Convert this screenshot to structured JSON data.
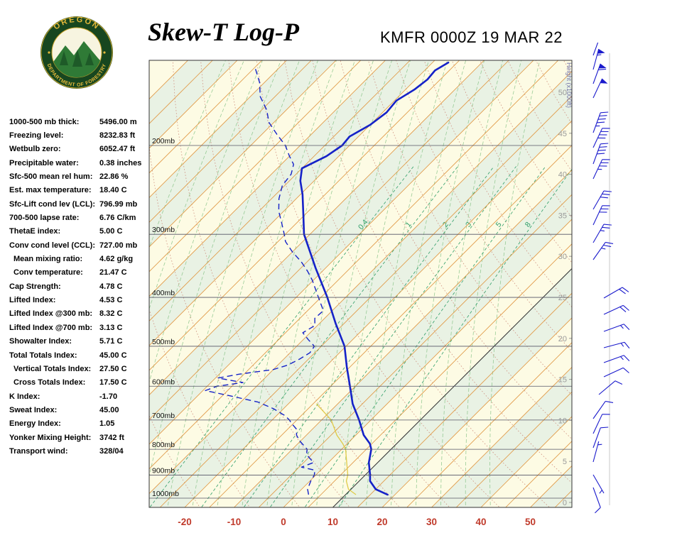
{
  "header": {
    "title": "Skew-T Log-P",
    "station_line": "KMFR 0000Z 19 MAR 22",
    "logo": {
      "top_text": "OREGON",
      "bottom_text": "DEPARTMENT OF FORESTRY"
    }
  },
  "stats": {
    "rows": [
      {
        "label": "1000-500 mb thick:",
        "value": "5496.00 m",
        "indent": false
      },
      {
        "label": "Freezing level:",
        "value": "8232.83 ft",
        "indent": false
      },
      {
        "label": "Wetbulb zero:",
        "value": "6052.47 ft",
        "indent": false
      },
      {
        "label": "Precipitable water:",
        "value": "0.38 inches",
        "indent": false
      },
      {
        "label": "Sfc-500 mean rel hum:",
        "value": "22.86 %",
        "indent": false
      },
      {
        "label": "Est. max temperature:",
        "value": "18.40 C",
        "indent": false
      },
      {
        "label": "Sfc-Lift cond lev (LCL):",
        "value": "796.99 mb",
        "indent": false
      },
      {
        "label": "700-500 lapse rate:",
        "value": "6.76 C/km",
        "indent": false
      },
      {
        "label": "ThetaE index:",
        "value": "5.00 C",
        "indent": false
      },
      {
        "label": "Conv cond level (CCL):",
        "value": "727.00 mb",
        "indent": false
      },
      {
        "label": "Mean mixing ratio:",
        "value": "4.62 g/kg",
        "indent": true
      },
      {
        "label": "Conv temperature:",
        "value": "21.47 C",
        "indent": true
      },
      {
        "label": "Cap Strength:",
        "value": "4.78 C",
        "indent": false
      },
      {
        "label": "Lifted Index:",
        "value": "4.53 C",
        "indent": false
      },
      {
        "label": "Lifted Index @300 mb:",
        "value": "8.32 C",
        "indent": false
      },
      {
        "label": "Lifted Index @700 mb:",
        "value": "3.13 C",
        "indent": false
      },
      {
        "label": "Showalter Index:",
        "value": "5.71 C",
        "indent": false
      },
      {
        "label": "Total Totals Index:",
        "value": "45.00 C",
        "indent": false
      },
      {
        "label": "Vertical Totals Index:",
        "value": "27.50 C",
        "indent": true
      },
      {
        "label": "Cross Totals Index:",
        "value": "17.50 C",
        "indent": true
      },
      {
        "label": "K Index:",
        "value": "-1.70",
        "indent": false
      },
      {
        "label": "Sweat Index:",
        "value": "45.00",
        "indent": false
      },
      {
        "label": "Energy Index:",
        "value": "1.05",
        "indent": false
      },
      {
        "label": "Yonker Mixing Height:",
        "value": "3742 ft",
        "indent": false
      },
      {
        "label": "Transport wind:",
        "value": "328/04",
        "indent": false
      }
    ]
  },
  "chart_data": {
    "type": "line",
    "title": "Skew-T Log-P",
    "x_axis": {
      "ticks": [
        -20,
        -10,
        0,
        10,
        20,
        30,
        40,
        50
      ],
      "unit": "C"
    },
    "pressure_levels": [
      200,
      300,
      400,
      500,
      600,
      700,
      800,
      900,
      1000
    ],
    "pressure_unit": "mb",
    "height_scale": {
      "label": "Height (x1000ft)",
      "ticks": [
        50,
        45,
        40,
        35,
        30,
        25,
        20,
        15,
        10,
        5,
        0
      ]
    },
    "mixing_ratio_labels": [
      0.4,
      1,
      2,
      3,
      5,
      8
    ],
    "highlight_isotherm": 10,
    "colors": {
      "temperature": "#1522C8",
      "dewpoint": "#1522C8",
      "isotherm": "#E09946",
      "isotherm_highlight": "#3A3A3A",
      "dry_adiabat": "#CC8878",
      "moist_adiabat": "#8AC48A",
      "mixing_ratio": "#2E9E68",
      "pressure_line": "#555566",
      "band_a": "#FDFBE4",
      "band_b": "#E9F2E4",
      "temp_axis": "#C03A2B",
      "height_scale": "#999999",
      "wind_barb": "#1A1ACC",
      "wetbulb": "#DFCB4A"
    },
    "series": [
      {
        "name": "temperature",
        "points": [
          [
            984,
            18.5
          ],
          [
            960,
            15.0
          ],
          [
            925,
            12.2
          ],
          [
            900,
            11.0
          ],
          [
            850,
            8.2
          ],
          [
            800,
            6.0
          ],
          [
            780,
            4.6
          ],
          [
            750,
            1.6
          ],
          [
            700,
            -2.4
          ],
          [
            650,
            -7.0
          ],
          [
            600,
            -11.1
          ],
          [
            550,
            -15.6
          ],
          [
            500,
            -20.3
          ],
          [
            450,
            -26.8
          ],
          [
            400,
            -33.7
          ],
          [
            350,
            -42.0
          ],
          [
            300,
            -51.2
          ],
          [
            275,
            -55.2
          ],
          [
            250,
            -59.6
          ],
          [
            235,
            -62.8
          ],
          [
            222,
            -65.0
          ],
          [
            210,
            -62.5
          ],
          [
            200,
            -61.5
          ],
          [
            192,
            -61.8
          ],
          [
            182,
            -60.0
          ],
          [
            172,
            -59.2
          ],
          [
            163,
            -59.6
          ],
          [
            155,
            -58.2
          ],
          [
            148,
            -57.6
          ],
          [
            142,
            -57.9
          ],
          [
            137,
            -56.8
          ]
        ]
      },
      {
        "name": "dewpoint",
        "points": [
          [
            984,
            2.5
          ],
          [
            960,
            1.2
          ],
          [
            925,
            0.2
          ],
          [
            900,
            -0.3
          ],
          [
            880,
            -1.2
          ],
          [
            868,
            -4.5
          ],
          [
            850,
            -3.0
          ],
          [
            820,
            -6.0
          ],
          [
            800,
            -7.0
          ],
          [
            770,
            -10.2
          ],
          [
            750,
            -12.0
          ],
          [
            730,
            -13.2
          ],
          [
            710,
            -15.5
          ],
          [
            700,
            -16.5
          ],
          [
            685,
            -18.5
          ],
          [
            665,
            -22.0
          ],
          [
            645,
            -26.5
          ],
          [
            628,
            -33.0
          ],
          [
            612,
            -39.5
          ],
          [
            600,
            -38.0
          ],
          [
            590,
            -33.5
          ],
          [
            578,
            -39.5
          ],
          [
            568,
            -36.0
          ],
          [
            556,
            -30.0
          ],
          [
            545,
            -28.0
          ],
          [
            530,
            -26.8
          ],
          [
            515,
            -26.0
          ],
          [
            500,
            -26.4
          ],
          [
            485,
            -29.0
          ],
          [
            470,
            -31.5
          ],
          [
            455,
            -30.5
          ],
          [
            440,
            -32.0
          ],
          [
            425,
            -31.8
          ],
          [
            410,
            -34.0
          ],
          [
            400,
            -35.5
          ],
          [
            385,
            -37.8
          ],
          [
            370,
            -40.2
          ],
          [
            355,
            -43.0
          ],
          [
            340,
            -46.2
          ],
          [
            325,
            -50.0
          ],
          [
            310,
            -53.5
          ],
          [
            300,
            -55.2
          ],
          [
            285,
            -58.0
          ],
          [
            270,
            -61.0
          ],
          [
            255,
            -63.5
          ],
          [
            240,
            -65.5
          ],
          [
            228,
            -66.0
          ],
          [
            218,
            -67.5
          ],
          [
            210,
            -70.0
          ],
          [
            200,
            -73.0
          ],
          [
            190,
            -77.0
          ],
          [
            180,
            -81.0
          ],
          [
            170,
            -84.0
          ],
          [
            160,
            -88.0
          ],
          [
            150,
            -91.0
          ],
          [
            140,
            -95.0
          ]
        ]
      }
    ],
    "wetbulb": {
      "factor": 0.6,
      "top_p": 620
    },
    "wind_barbs": {
      "barbs": [
        [
          78,
          20,
          55,
          30
        ],
        [
          98,
          15,
          55,
          30
        ],
        [
          118,
          20,
          60,
          30
        ],
        [
          138,
          25,
          50,
          30
        ],
        [
          187,
          20,
          45,
          30
        ],
        [
          208,
          25,
          40,
          30
        ],
        [
          231,
          20,
          40,
          30
        ],
        [
          252,
          25,
          35,
          30
        ],
        [
          295,
          30,
          30,
          30
        ],
        [
          317,
          25,
          30,
          30
        ],
        [
          342,
          30,
          25,
          30
        ],
        [
          366,
          35,
          25,
          30
        ],
        [
          420,
          60,
          20,
          45
        ],
        [
          443,
          65,
          20,
          45
        ],
        [
          467,
          70,
          15,
          45
        ],
        [
          490,
          75,
          15,
          45
        ],
        [
          511,
          70,
          15,
          45
        ],
        [
          531,
          65,
          10,
          45
        ],
        [
          556,
          50,
          10,
          38
        ],
        [
          590,
          35,
          10,
          30
        ],
        [
          611,
          25,
          10,
          30
        ],
        [
          631,
          20,
          10,
          30
        ],
        [
          651,
          15,
          5,
          30
        ],
        [
          669,
          150,
          5,
          30
        ],
        [
          687,
          160,
          8,
          30
        ]
      ]
    }
  }
}
